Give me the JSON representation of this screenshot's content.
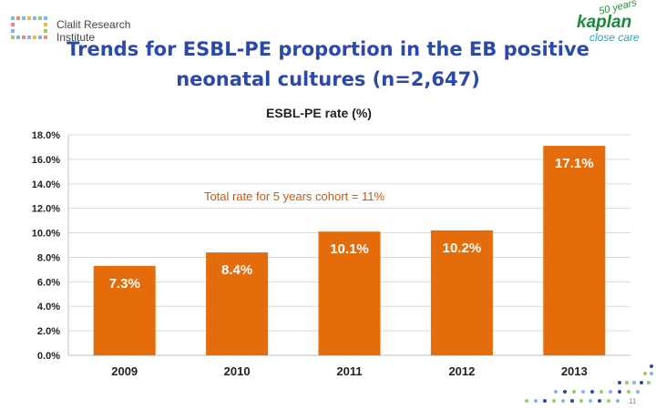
{
  "header": {
    "org_name": "Clalit Research Institute",
    "partner_brand": "kaplan",
    "partner_sub": "close care",
    "partner_years": "50 years"
  },
  "slide": {
    "title": "Trends for ESBL-PE proportion in the EB positive neonatal cultures (n=2,647)",
    "page_number": "11"
  },
  "chart_data": {
    "type": "bar",
    "title": "ESBL-PE rate (%)",
    "categories": [
      "2009",
      "2010",
      "2011",
      "2012",
      "2013"
    ],
    "values": [
      7.3,
      8.4,
      10.1,
      10.2,
      17.1
    ],
    "data_labels": [
      "7.3%",
      "8.4%",
      "10.1%",
      "10.2%",
      "17.1%"
    ],
    "y_ticks": [
      "0.0%",
      "2.0%",
      "4.0%",
      "6.0%",
      "8.0%",
      "10.0%",
      "12.0%",
      "14.0%",
      "16.0%",
      "18.0%"
    ],
    "ylim": [
      0,
      18
    ],
    "grid": true,
    "annotation": "Total rate for 5 years cohort = 11%",
    "colors": {
      "bar": "#e46c0a",
      "bar_label": "#ffffff",
      "grid": "#d9d9d9",
      "annotation": "#c55a11",
      "title": "#2b4aa8"
    }
  }
}
